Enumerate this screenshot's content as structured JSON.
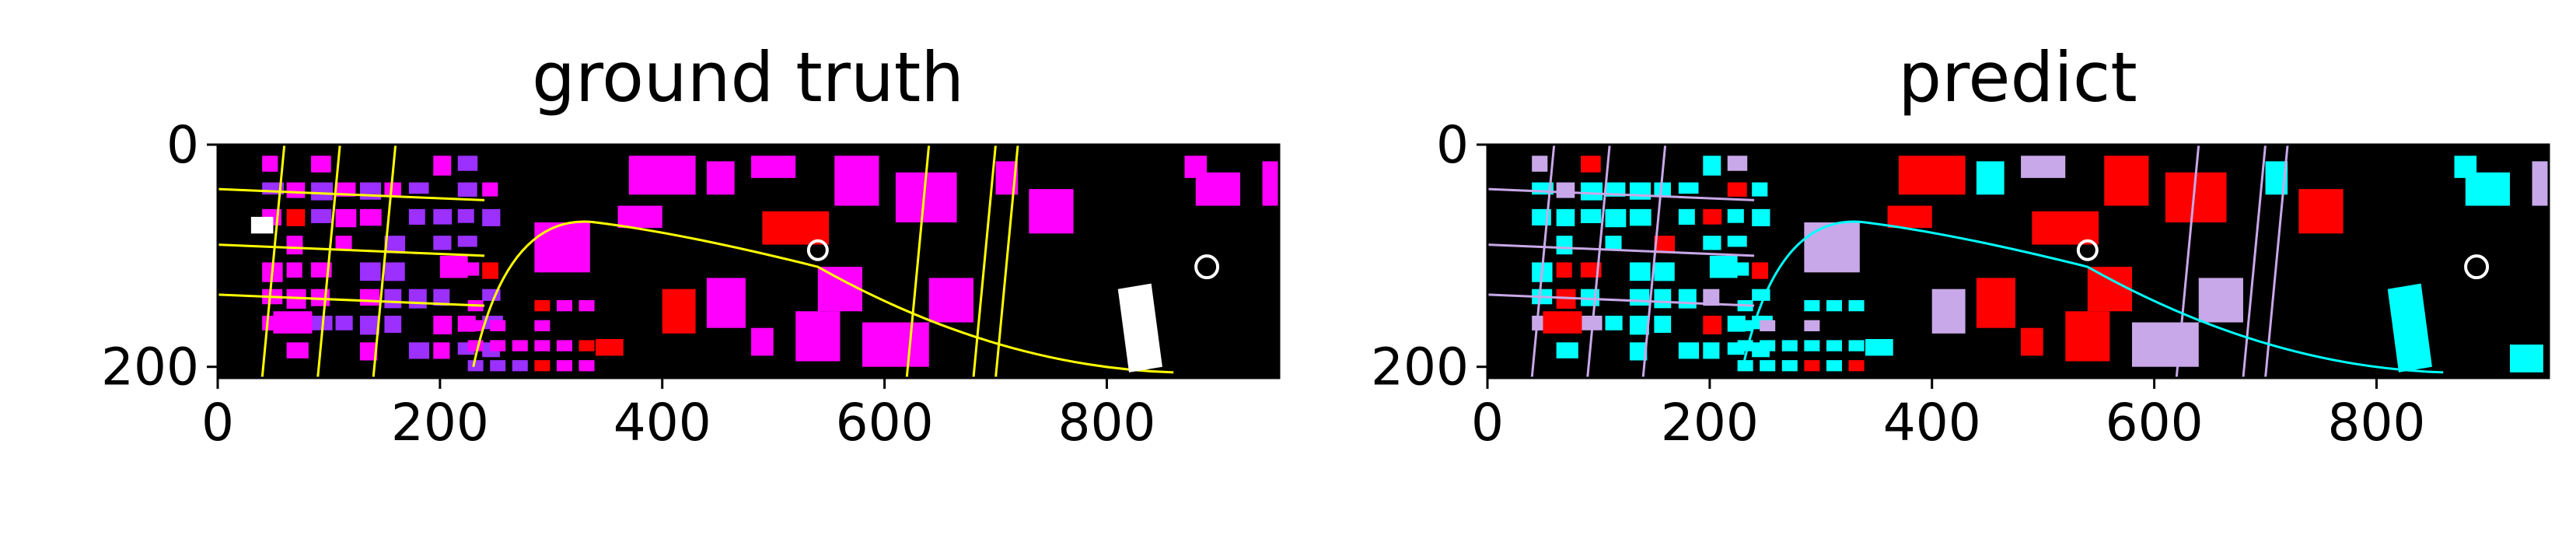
{
  "chart_data": [
    {
      "type": "heatmap",
      "title": "ground truth",
      "xlabel": "",
      "ylabel": "",
      "xlim": [
        0,
        955
      ],
      "ylim": [
        210,
        0
      ],
      "xticks": [
        "0",
        "200",
        "400",
        "600",
        "800"
      ],
      "yticks": [
        "0",
        "200"
      ],
      "grid": false,
      "legend": "none",
      "colors": {
        "background": "#000000",
        "class_a": "#ff00ff",
        "class_b": "#9b30ff",
        "class_c": "#ffff00",
        "class_d": "#ff0000",
        "class_e": "#ffffff",
        "class_f": "#00ffff"
      }
    },
    {
      "type": "heatmap",
      "title": "predict",
      "xlabel": "",
      "ylabel": "",
      "xlim": [
        0,
        955
      ],
      "ylim": [
        210,
        0
      ],
      "xticks": [
        "0",
        "200",
        "400",
        "600",
        "800"
      ],
      "yticks": [
        "0",
        "200"
      ],
      "grid": false,
      "legend": "none",
      "colors": {
        "background": "#000000",
        "class_a": "#00ffff",
        "class_b": "#ff0000",
        "class_c": "#c8a8e8",
        "class_d": "#ffffff"
      }
    }
  ]
}
